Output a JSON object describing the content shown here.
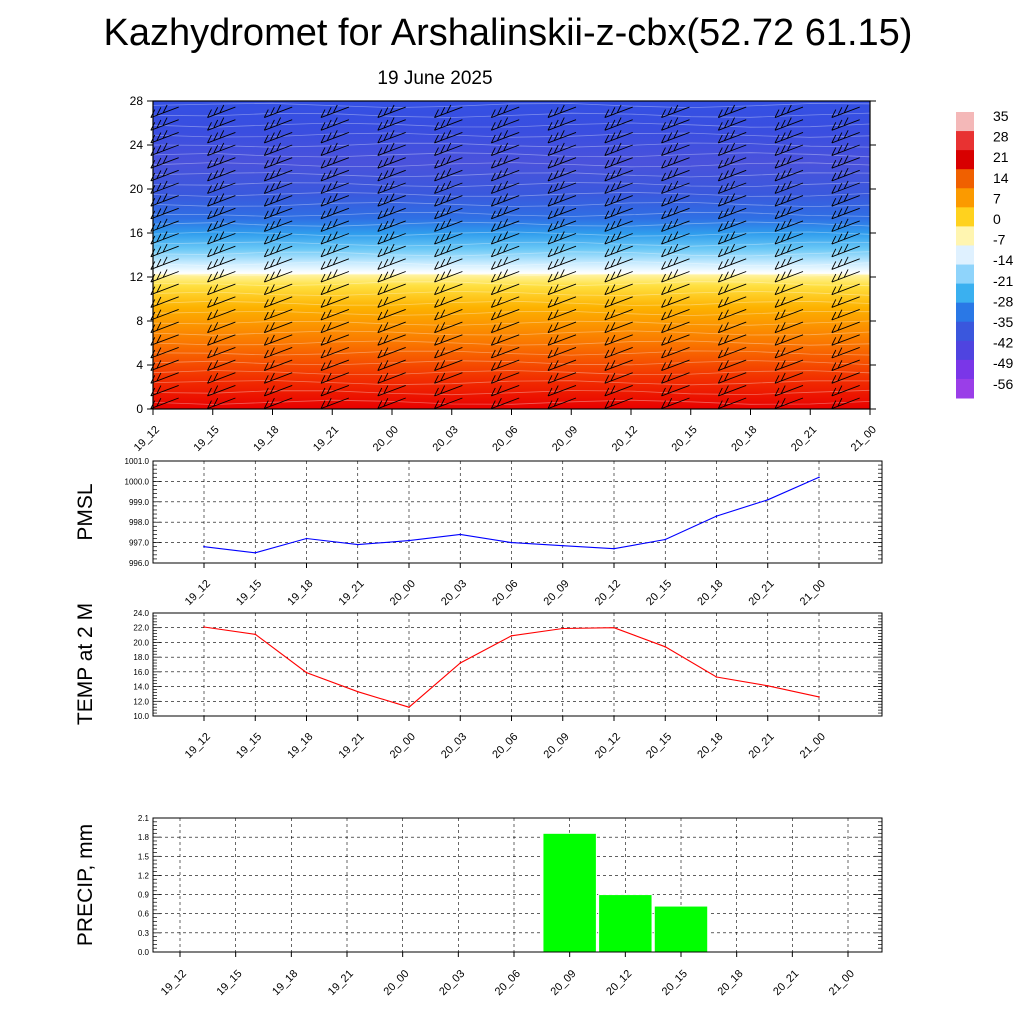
{
  "title": "Kazhydromet for Arshalinskii-z-cbx(52.72 61.15)",
  "subtitle": "19 June 2025",
  "time_labels": [
    "19_12",
    "19_15",
    "19_18",
    "19_21",
    "20_00",
    "20_03",
    "20_06",
    "20_09",
    "20_12",
    "20_15",
    "20_18",
    "20_21",
    "21_00"
  ],
  "colorbar": {
    "labels": [
      "35",
      "28",
      "21",
      "14",
      "7",
      "0",
      "-7",
      "-14",
      "-21",
      "-28",
      "-35",
      "-42",
      "-49",
      "-56"
    ],
    "colors": [
      "#f4b8b8",
      "#e83232",
      "#d80000",
      "#f06000",
      "#fb9a00",
      "#ffd21e",
      "#fff5b0",
      "#dff1ff",
      "#8fd4fb",
      "#3ab0f0",
      "#2a78e6",
      "#3a57dd",
      "#4f44e0",
      "#7a36e8",
      "#9a3ee8"
    ]
  },
  "chart_data": [
    {
      "type": "heatmap",
      "title": "",
      "ylabel": "",
      "y_ticks": [
        "0",
        "4",
        "8",
        "12",
        "16",
        "20",
        "24",
        "28"
      ],
      "ylim": [
        0,
        28
      ],
      "x": [
        "19_12",
        "19_15",
        "19_18",
        "19_21",
        "20_00",
        "20_03",
        "20_06",
        "20_09",
        "20_12",
        "20_15",
        "20_18",
        "20_21",
        "21_00"
      ],
      "field": "air temperature by model level with wind barbs",
      "value_range": [
        -56,
        35
      ],
      "freezing_level": 12.2
    },
    {
      "type": "line",
      "ylabel": "PMSL",
      "y_ticks": [
        "996.0",
        "997.0",
        "998.0",
        "999.0",
        "1000.0",
        "1001.0"
      ],
      "ylim": [
        996.0,
        1001.0
      ],
      "x": [
        "19_12",
        "19_15",
        "19_18",
        "19_21",
        "20_00",
        "20_03",
        "20_06",
        "20_09",
        "20_12",
        "20_15",
        "20_18",
        "20_21",
        "21_00"
      ],
      "series": [
        {
          "values": [
            996.8,
            996.5,
            997.2,
            996.9,
            997.1,
            997.4,
            997.0,
            996.85,
            996.7,
            997.15,
            998.3,
            999.1,
            1000.2
          ]
        }
      ],
      "line_color": "#0000ff",
      "grid": true
    },
    {
      "type": "line",
      "ylabel": "TEMP at 2 M",
      "y_ticks": [
        "10.0",
        "12.0",
        "14.0",
        "16.0",
        "18.0",
        "20.0",
        "22.0",
        "24.0"
      ],
      "ylim": [
        10.0,
        24.0
      ],
      "x": [
        "19_12",
        "19_15",
        "19_18",
        "19_21",
        "20_00",
        "20_03",
        "20_06",
        "20_09",
        "20_12",
        "20_15",
        "20_18",
        "20_21",
        "21_00"
      ],
      "series": [
        {
          "values": [
            22.1,
            21.1,
            15.9,
            13.3,
            11.2,
            17.2,
            20.9,
            21.9,
            22.0,
            19.4,
            15.3,
            14.1,
            12.6
          ]
        }
      ],
      "line_color": "#ff0000",
      "grid": true
    },
    {
      "type": "bar",
      "ylabel": "PRECIP, mm",
      "y_ticks": [
        "0.0",
        "0.3",
        "0.6",
        "0.9",
        "1.2",
        "1.5",
        "1.8",
        "2.1"
      ],
      "ylim": [
        0,
        2.1
      ],
      "categories": [
        "19_12",
        "19_15",
        "19_18",
        "19_21",
        "20_00",
        "20_03",
        "20_06",
        "20_09",
        "20_12",
        "20_15",
        "20_18",
        "20_21",
        "21_00"
      ],
      "values": [
        0,
        0,
        0,
        0,
        0,
        0,
        0,
        1.86,
        0.9,
        0.72,
        0,
        0,
        0
      ],
      "bar_color": "#00ff00",
      "grid": true
    }
  ]
}
